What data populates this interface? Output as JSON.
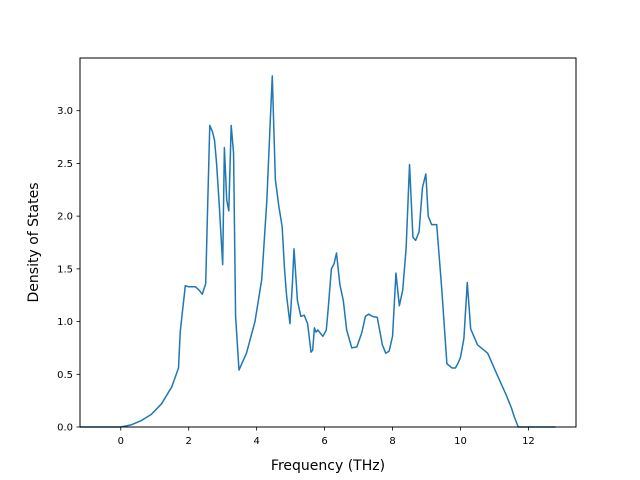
{
  "chart_data": {
    "type": "line",
    "title": "",
    "xlabel": "Frequency (THz)",
    "ylabel": "Density of States",
    "xlim": [
      -1.2,
      13.4
    ],
    "ylim": [
      0.0,
      3.5
    ],
    "xticks": [
      0,
      2,
      4,
      6,
      8,
      10,
      12
    ],
    "yticks": [
      0.0,
      0.5,
      1.0,
      1.5,
      2.0,
      2.5,
      3.0
    ],
    "xtick_labels": [
      "0",
      "2",
      "4",
      "6",
      "8",
      "10",
      "12"
    ],
    "ytick_labels": [
      "0.0",
      "0.5",
      "1.0",
      "1.5",
      "2.0",
      "2.5",
      "3.0"
    ],
    "grid": false,
    "legend": "none",
    "series": [
      {
        "color": "#1f77b4",
        "x": [
          -1.2,
          -0.5,
          0.0,
          0.3,
          0.6,
          0.9,
          1.2,
          1.5,
          1.7,
          1.75,
          1.8,
          1.9,
          2.0,
          2.2,
          2.3,
          2.4,
          2.5,
          2.55,
          2.62,
          2.7,
          2.76,
          2.82,
          2.9,
          3.0,
          3.05,
          3.12,
          3.18,
          3.25,
          3.32,
          3.38,
          3.48,
          3.7,
          3.95,
          4.15,
          4.3,
          4.4,
          4.46,
          4.55,
          4.65,
          4.75,
          4.82,
          4.88,
          4.98,
          5.05,
          5.1,
          5.2,
          5.3,
          5.4,
          5.5,
          5.6,
          5.65,
          5.7,
          5.75,
          5.8,
          5.95,
          6.05,
          6.1,
          6.2,
          6.28,
          6.35,
          6.45,
          6.55,
          6.65,
          6.8,
          6.95,
          7.1,
          7.2,
          7.3,
          7.4,
          7.55,
          7.7,
          7.8,
          7.9,
          8.0,
          8.1,
          8.2,
          8.3,
          8.4,
          8.5,
          8.6,
          8.68,
          8.78,
          8.88,
          8.98,
          9.05,
          9.15,
          9.3,
          9.45,
          9.6,
          9.75,
          9.85,
          9.92,
          10.0,
          10.1,
          10.2,
          10.3,
          10.5,
          10.8,
          11.1,
          11.35,
          11.5,
          11.58,
          11.7,
          12.0,
          12.8
        ],
        "y": [
          0.0,
          0.0,
          0.0,
          0.02,
          0.06,
          0.12,
          0.22,
          0.38,
          0.56,
          0.9,
          1.05,
          1.34,
          1.33,
          1.33,
          1.3,
          1.26,
          1.36,
          2.0,
          2.86,
          2.8,
          2.72,
          2.5,
          2.1,
          1.54,
          2.65,
          2.15,
          2.05,
          2.86,
          2.6,
          1.05,
          0.54,
          0.7,
          1.0,
          1.4,
          2.15,
          2.9,
          3.33,
          2.35,
          2.1,
          1.9,
          1.5,
          1.25,
          0.98,
          1.35,
          1.69,
          1.2,
          1.05,
          1.06,
          0.98,
          0.71,
          0.73,
          0.94,
          0.9,
          0.92,
          0.86,
          0.92,
          1.1,
          1.5,
          1.55,
          1.65,
          1.35,
          1.2,
          0.92,
          0.75,
          0.76,
          0.9,
          1.05,
          1.07,
          1.05,
          1.04,
          0.78,
          0.7,
          0.72,
          0.86,
          1.46,
          1.15,
          1.3,
          1.7,
          2.49,
          1.8,
          1.77,
          1.85,
          2.27,
          2.4,
          2.0,
          1.92,
          1.92,
          1.3,
          0.6,
          0.56,
          0.56,
          0.6,
          0.66,
          0.84,
          1.37,
          0.93,
          0.78,
          0.7,
          0.48,
          0.3,
          0.18,
          0.1,
          0.0,
          0.0,
          0.0
        ]
      }
    ]
  }
}
